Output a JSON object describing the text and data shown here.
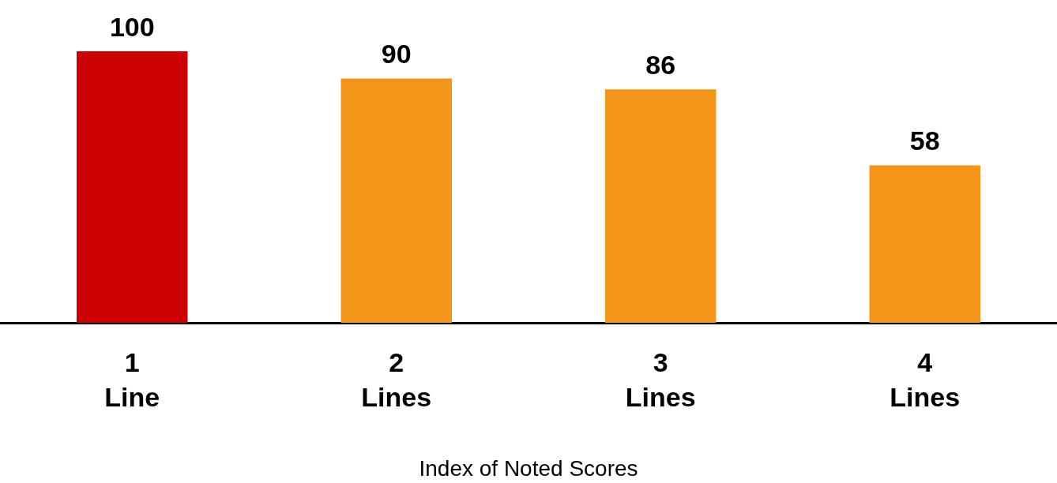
{
  "chart_data": {
    "type": "bar",
    "categories": [
      "1\nLine",
      "2\nLines",
      "3\nLines",
      "4\nLines"
    ],
    "values": [
      100,
      90,
      86,
      58
    ],
    "colors": [
      "#cc0000",
      "#f39519",
      "#f39519",
      "#f39519"
    ],
    "data_labels": true,
    "xlabel": "Index of Noted Scores"
  }
}
